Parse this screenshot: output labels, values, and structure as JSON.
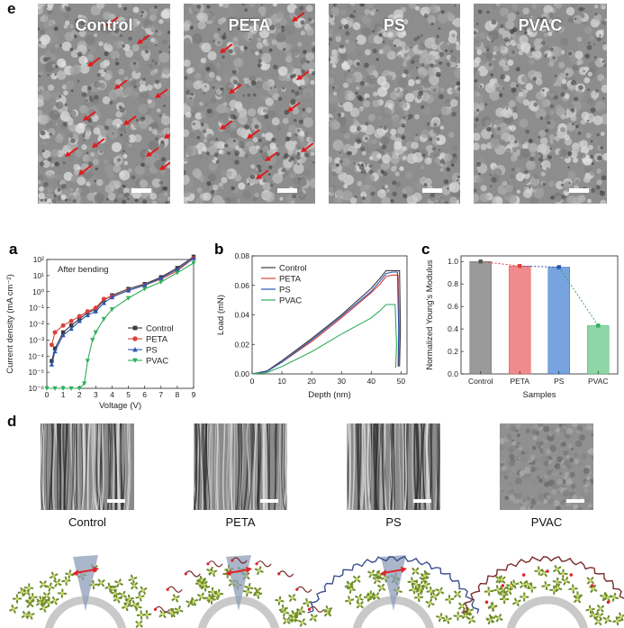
{
  "panel_e": {
    "label": "e",
    "images": [
      {
        "title": "Control",
        "arrows": 13
      },
      {
        "title": "PETA",
        "arrows": 10
      },
      {
        "title": "PS",
        "arrows": 0
      },
      {
        "title": "PVAC",
        "arrows": 0
      }
    ]
  },
  "panel_d": {
    "label": "d",
    "images": [
      {
        "title": "Control"
      },
      {
        "title": "PETA"
      },
      {
        "title": "PS"
      },
      {
        "title": "PVAC"
      }
    ]
  },
  "chart_data": [
    {
      "panel": "a",
      "type": "line",
      "annotation": "After bending",
      "xlabel": "Voltage (V)",
      "ylabel": "Current density (mA cm⁻²)",
      "xlim": [
        0,
        9
      ],
      "ylim": [
        1e-06,
        100
      ],
      "yscale": "log",
      "xticks": [
        "0",
        "1",
        "2",
        "3",
        "4",
        "5",
        "6",
        "7",
        "8",
        "9"
      ],
      "yticks": [
        "10⁻⁶",
        "10⁻⁵",
        "10⁻⁴",
        "10⁻³",
        "10⁻²",
        "10⁻¹",
        "10⁰",
        "10¹",
        "10²"
      ],
      "legend_position": "bottom-right",
      "series": [
        {
          "name": "Control",
          "color": "#3a3a3a",
          "marker": "square",
          "x": [
            0.3,
            0.5,
            1,
            1.5,
            2,
            2.5,
            3,
            3.5,
            4,
            5,
            6,
            7,
            8,
            9
          ],
          "y": [
            5e-05,
            0.0003,
            0.003,
            0.008,
            0.02,
            0.05,
            0.08,
            0.3,
            0.6,
            1.5,
            3,
            8,
            30,
            150
          ]
        },
        {
          "name": "PETA",
          "color": "#d9423b",
          "marker": "circle",
          "x": [
            0.3,
            0.5,
            1,
            1.5,
            2,
            2.5,
            3,
            3.5,
            4,
            5,
            6,
            7,
            8,
            9
          ],
          "y": [
            0.0005,
            0.003,
            0.008,
            0.015,
            0.03,
            0.06,
            0.1,
            0.35,
            0.5,
            1.2,
            2.5,
            6,
            20,
            120
          ]
        },
        {
          "name": "PS",
          "color": "#2b55b0",
          "marker": "triangle-up",
          "x": [
            0.3,
            0.5,
            1,
            1.5,
            2,
            2.5,
            3,
            3.5,
            4,
            5,
            6,
            7,
            8,
            9
          ],
          "y": [
            3e-05,
            0.0002,
            0.002,
            0.005,
            0.015,
            0.035,
            0.06,
            0.2,
            0.45,
            1.2,
            2.5,
            7,
            25,
            120
          ]
        },
        {
          "name": "PVAC",
          "color": "#2fae5c",
          "marker": "triangle-down",
          "x": [
            0,
            0.5,
            1,
            1.5,
            2,
            2.3,
            2.5,
            2.8,
            3,
            3.5,
            4,
            5,
            6,
            7,
            8,
            9
          ],
          "y": [
            1e-06,
            1e-06,
            1e-06,
            1e-06,
            1e-06,
            2e-06,
            5e-05,
            0.001,
            0.003,
            0.02,
            0.08,
            0.4,
            1.5,
            4,
            15,
            60
          ]
        }
      ]
    },
    {
      "panel": "b",
      "type": "line",
      "xlabel": "Depth (nm)",
      "ylabel": "Load (mN)",
      "xlim": [
        0,
        52
      ],
      "ylim": [
        0,
        0.08
      ],
      "xticks": [
        "0",
        "10",
        "20",
        "30",
        "40",
        "50"
      ],
      "yticks": [
        "0.00",
        "0.02",
        "0.04",
        "0.06",
        "0.08"
      ],
      "legend_position": "top-left",
      "series": [
        {
          "name": "Control",
          "color": "#3a3a3a",
          "x": [
            0,
            5,
            10,
            20,
            30,
            40,
            43,
            45,
            47,
            49.5,
            49.8,
            49.5
          ],
          "y": [
            0,
            0.002,
            0.009,
            0.024,
            0.04,
            0.058,
            0.065,
            0.07,
            0.07,
            0.07,
            0.03,
            0.005
          ]
        },
        {
          "name": "PETA",
          "color": "#d9423b",
          "x": [
            0,
            5,
            10,
            20,
            30,
            40,
            43,
            45,
            47,
            49,
            49.4,
            49.2
          ],
          "y": [
            0,
            0.0018,
            0.008,
            0.022,
            0.038,
            0.055,
            0.061,
            0.066,
            0.067,
            0.067,
            0.03,
            0.005
          ]
        },
        {
          "name": "PS",
          "color": "#2b55b0",
          "x": [
            0,
            5,
            10,
            20,
            30,
            40,
            43,
            45,
            47,
            48.8,
            49.2,
            49
          ],
          "y": [
            0,
            0.0018,
            0.008,
            0.023,
            0.039,
            0.056,
            0.063,
            0.068,
            0.069,
            0.069,
            0.03,
            0.005
          ]
        },
        {
          "name": "PVAC",
          "color": "#2fae5c",
          "x": [
            0,
            5,
            10,
            20,
            30,
            40,
            43,
            45,
            47,
            48,
            48.5,
            48.2
          ],
          "y": [
            0,
            0.001,
            0.005,
            0.015,
            0.027,
            0.038,
            0.043,
            0.047,
            0.047,
            0.047,
            0.02,
            0.004
          ]
        }
      ]
    },
    {
      "panel": "c",
      "type": "bar",
      "xlabel": "Samples",
      "ylabel": "Normalized Young's Modulus",
      "ylim": [
        0,
        1.05
      ],
      "yticks": [
        "0.0",
        "0.2",
        "0.4",
        "0.6",
        "0.8",
        "1.0"
      ],
      "categories": [
        "Control",
        "PETA",
        "PS",
        "PVAC"
      ],
      "values": [
        1.0,
        0.96,
        0.95,
        0.43
      ],
      "colors": [
        "#9a9a9a",
        "#f08a8c",
        "#77a3de",
        "#8fd6a6"
      ],
      "marker_colors": [
        "#555555",
        "#d9423b",
        "#2b55b0",
        "#2fae5c"
      ]
    }
  ]
}
